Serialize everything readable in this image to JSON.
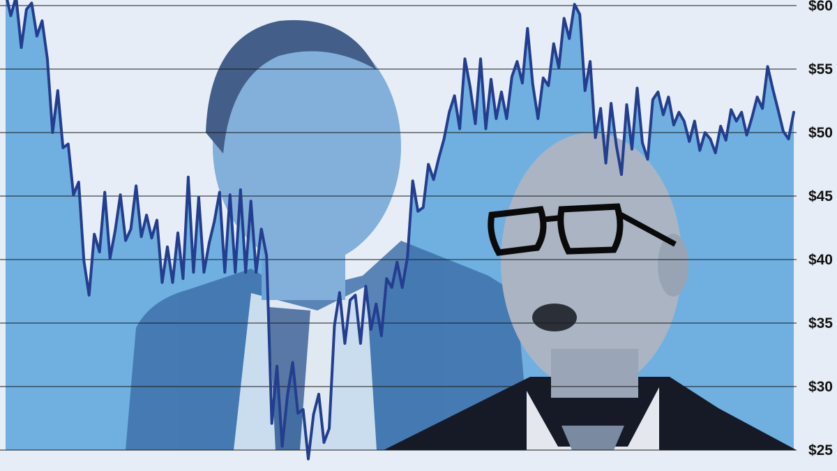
{
  "chart_data": {
    "type": "area",
    "title": "",
    "xlabel": "",
    "ylabel": "",
    "ylim": [
      25,
      60
    ],
    "y_ticks": [
      "$60",
      "$55",
      "$50",
      "$45",
      "$40",
      "$35",
      "$30",
      "$25"
    ],
    "y_tick_values": [
      60,
      55,
      50,
      45,
      40,
      35,
      30,
      25
    ],
    "y_axis_side": "right",
    "grid": true,
    "legend": "none",
    "colors": {
      "background": "#e6edf6",
      "area_fill": "#6fb0e0",
      "line": "#233e8e",
      "grid": "#1a1a1a",
      "photo_overlay": "#2a5fa3"
    },
    "series": [
      {
        "values": [
          61.0,
          59.2,
          60.7,
          56.7,
          59.7,
          60.2,
          57.6,
          58.8,
          55.8,
          50.0,
          53.3,
          48.8,
          49.1,
          45.1,
          46.1,
          39.9,
          37.2,
          42.0,
          40.6,
          45.3,
          40.1,
          42.3,
          45.1,
          41.5,
          42.4,
          45.8,
          41.8,
          43.5,
          41.7,
          43.1,
          38.2,
          41.0,
          38.2,
          42.1,
          38.5,
          46.5,
          39.0,
          44.9,
          39.0,
          41.3,
          43.0,
          45.3,
          39.0,
          45.1,
          39.0,
          45.5,
          39.0,
          44.6,
          39.0,
          42.4,
          40.3,
          27.1,
          31.6,
          25.3,
          29.3,
          31.9,
          27.9,
          28.2,
          24.3,
          27.8,
          29.4,
          25.6,
          26.7,
          34.8,
          37.4,
          33.4,
          36.8,
          37.2,
          33.4,
          37.9,
          34.5,
          36.5,
          34.0,
          38.5,
          37.8,
          39.8,
          37.8,
          40.2,
          46.2,
          43.8,
          44.1,
          47.5,
          46.3,
          48.0,
          49.5,
          51.6,
          52.9,
          50.3,
          55.8,
          53.6,
          50.7,
          55.8,
          50.3,
          54.2,
          51.1,
          53.2,
          51.1,
          54.4,
          55.6,
          53.9,
          58.2,
          53.8,
          51.1,
          54.3,
          53.7,
          57.0,
          55.1,
          59.0,
          57.4,
          60.1,
          59.3,
          53.3,
          55.6,
          49.6,
          51.9,
          47.6,
          52.3,
          49.0,
          46.7,
          52.2,
          48.7,
          53.5,
          49.2,
          47.9,
          52.6,
          53.2,
          51.4,
          52.8,
          50.6,
          51.6,
          50.9,
          49.3,
          50.9,
          48.6,
          50.0,
          49.5,
          48.4,
          50.5,
          49.4,
          51.8,
          50.9,
          51.6,
          49.8,
          51.2,
          52.8,
          51.9,
          55.2,
          53.4,
          51.8,
          50.1,
          49.5,
          51.6
        ]
      }
    ]
  }
}
